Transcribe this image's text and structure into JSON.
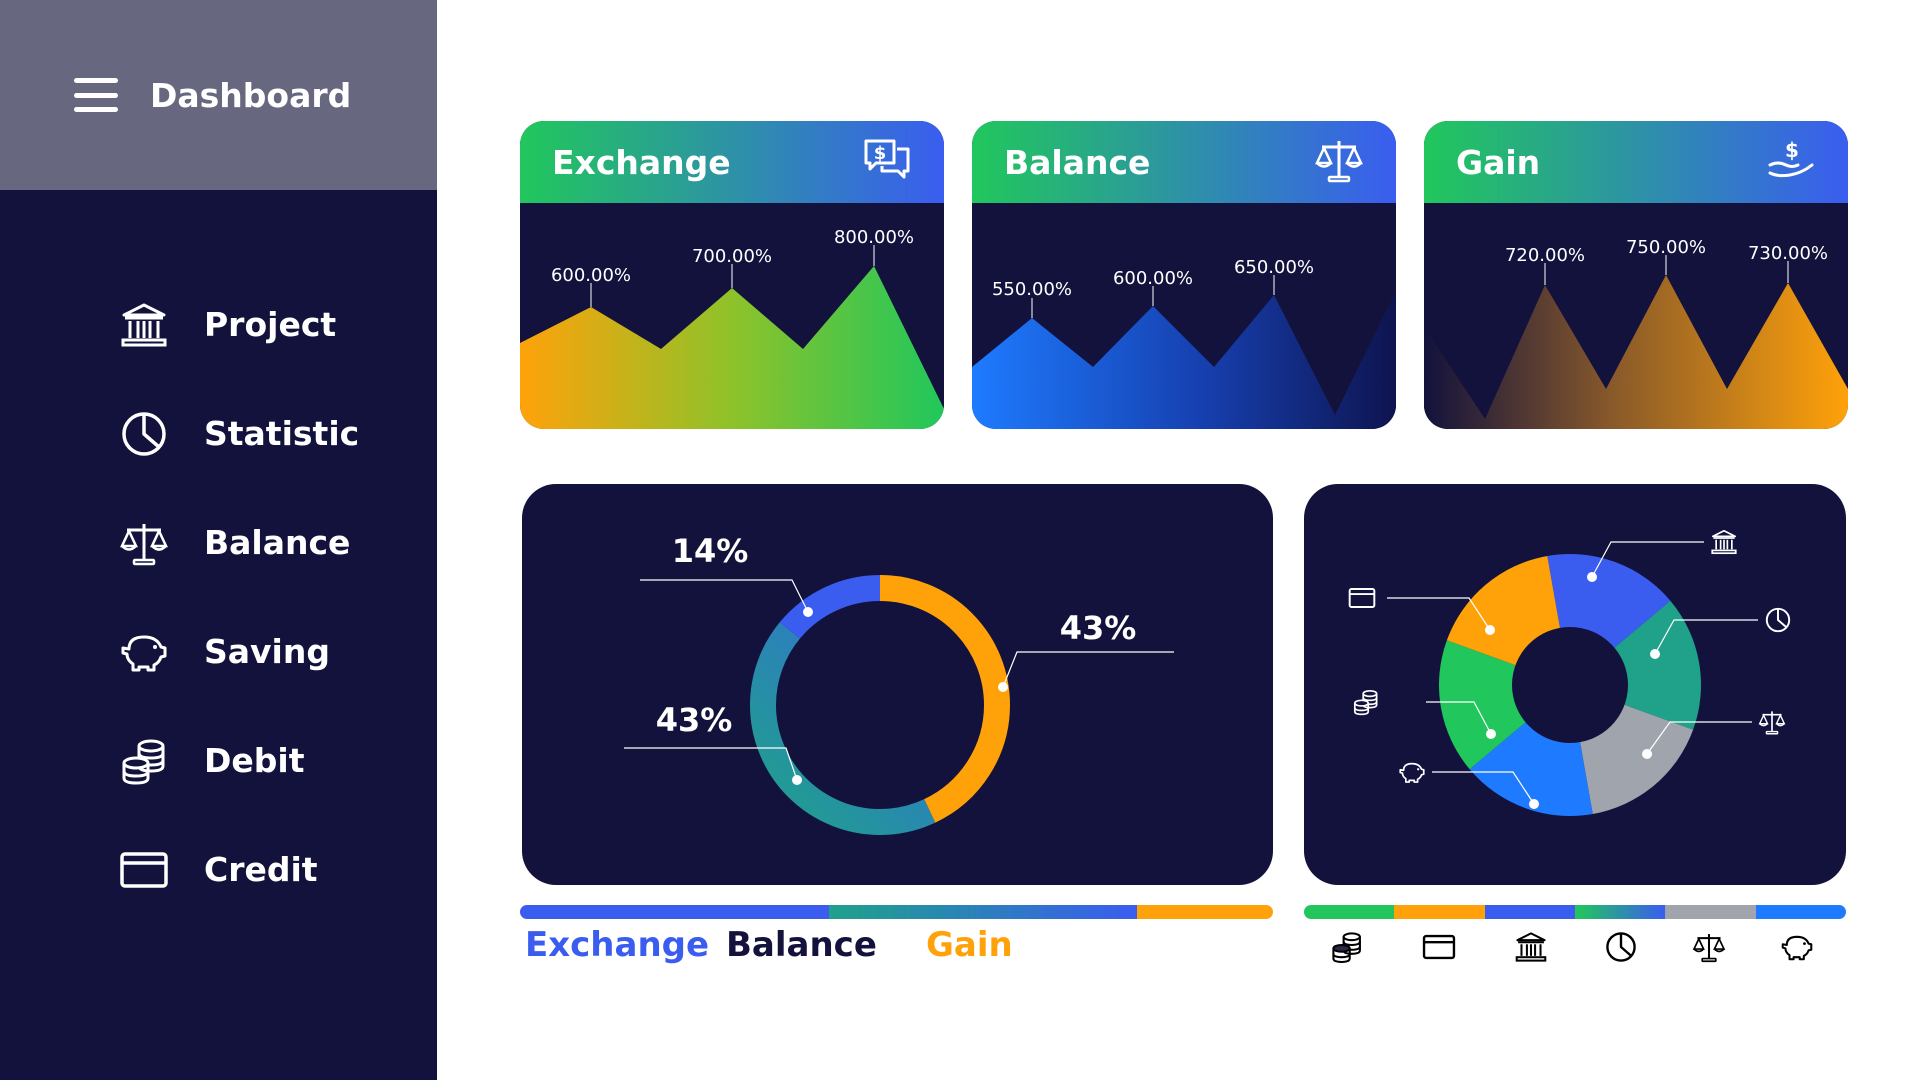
{
  "sidebar": {
    "title": "Dashboard",
    "items": [
      {
        "label": "Project",
        "icon": "bank-icon"
      },
      {
        "label": "Statistic",
        "icon": "pie-chart-icon"
      },
      {
        "label": "Balance",
        "icon": "scale-icon"
      },
      {
        "label": "Saving",
        "icon": "piggy-bank-icon"
      },
      {
        "label": "Debit",
        "icon": "coins-icon"
      },
      {
        "label": "Credit",
        "icon": "credit-card-icon"
      }
    ]
  },
  "cards": [
    {
      "title": "Exchange",
      "icon": "money-chat-icon"
    },
    {
      "title": "Balance",
      "icon": "scale-icon"
    },
    {
      "title": "Gain",
      "icon": "dollar-hand-icon"
    }
  ],
  "colors": {
    "sidebar_bg": "#12123c",
    "header_bg": "#676780",
    "green": "#21c75c",
    "blue": "#3a5df0",
    "orange": "#ffa20a",
    "teal": "#1fa18a",
    "gray": "#a0a4ad"
  },
  "chart_data": [
    {
      "type": "area",
      "title": "Exchange",
      "series": [
        {
          "values": [
            600,
            700,
            800
          ]
        }
      ],
      "labels": [
        "600.00%",
        "700.00%",
        "800.00%"
      ]
    },
    {
      "type": "area",
      "title": "Balance",
      "series": [
        {
          "values": [
            550,
            600,
            650
          ]
        }
      ],
      "labels": [
        "550.00%",
        "600.00%",
        "650.00%"
      ]
    },
    {
      "type": "area",
      "title": "Gain",
      "series": [
        {
          "values": [
            720,
            750,
            730
          ]
        }
      ],
      "labels": [
        "720.00%",
        "750.00%",
        "730.00%"
      ]
    },
    {
      "type": "pie",
      "segments": [
        {
          "value": 43,
          "label": "43%",
          "color": "#ffa20a"
        },
        {
          "value": 43,
          "label": "43%",
          "color": "#1fa18a"
        },
        {
          "value": 14,
          "label": "14%",
          "color": "#3a5df0"
        }
      ]
    },
    {
      "type": "pie",
      "segments": [
        {
          "icon": "bank-icon",
          "color": "#3a5df0"
        },
        {
          "icon": "pie-chart-icon",
          "color": "#1fa18a"
        },
        {
          "icon": "scale-icon",
          "color": "#a0a4ad"
        },
        {
          "icon": "piggy-bank-icon",
          "color": "#1e7bff"
        },
        {
          "icon": "coins-icon",
          "color": "#21c75c"
        },
        {
          "icon": "credit-card-icon",
          "color": "#ffa20a"
        }
      ]
    }
  ],
  "legend": [
    {
      "label": "Exchange",
      "color": "#3a5df0"
    },
    {
      "label": "Balance",
      "color": "#12123c"
    },
    {
      "label": "Gain",
      "color": "#ffa20a"
    }
  ],
  "icon_legend": [
    "coins-icon",
    "credit-card-icon",
    "bank-icon",
    "pie-chart-icon",
    "scale-icon",
    "piggy-bank-icon"
  ]
}
